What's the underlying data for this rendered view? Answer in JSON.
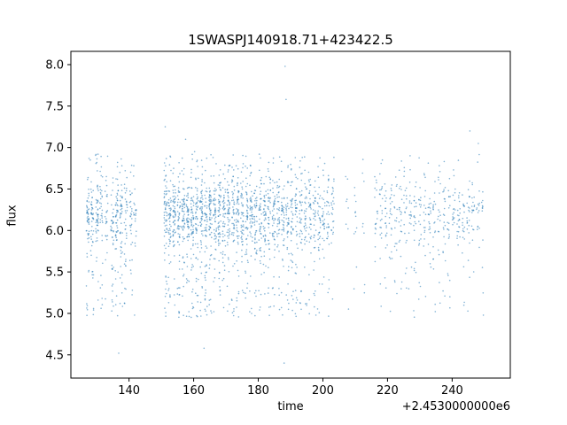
{
  "chart_data": {
    "type": "scatter",
    "title": "1SWASPJ140918.71+423422.5",
    "xlabel": "time",
    "ylabel": "flux",
    "x_offset_label": "+2.4530000000e6",
    "xlim": [
      122,
      258
    ],
    "ylim": [
      4.22,
      8.16
    ],
    "xticks": [
      140,
      160,
      180,
      200,
      220,
      240
    ],
    "yticks": [
      4.5,
      5.0,
      5.5,
      6.0,
      6.5,
      7.0,
      7.5,
      8.0
    ],
    "grid": false,
    "legend": "none",
    "marker": {
      "color": "#1f77b4",
      "radius": 0.8,
      "opacity": 0.55
    },
    "seed": 7,
    "cluster_width": 0.9,
    "dist": {
      "mean": 6.22,
      "sd": 0.21,
      "tail_frac": 0.2,
      "tail_lo": 4.95,
      "tail_hi": 6.02,
      "high_frac": 0.06,
      "high_lo": 6.5,
      "high_hi": 6.92,
      "clip_lo": 4.45,
      "clip_hi": 7.25
    },
    "clusters": [
      [
        127.2,
        55
      ],
      [
        128.6,
        45
      ],
      [
        130.1,
        50
      ],
      [
        131.4,
        35
      ],
      [
        133.0,
        25
      ],
      [
        134.8,
        40
      ],
      [
        136.2,
        50
      ],
      [
        137.6,
        45
      ],
      [
        139.0,
        35
      ],
      [
        140.6,
        30
      ],
      [
        141.8,
        20
      ],
      [
        151.3,
        65
      ],
      [
        152.6,
        55
      ],
      [
        154.0,
        60
      ],
      [
        155.4,
        55
      ],
      [
        156.8,
        60
      ],
      [
        158.2,
        55
      ],
      [
        159.6,
        65
      ],
      [
        161.0,
        55
      ],
      [
        162.4,
        60
      ],
      [
        163.8,
        55
      ],
      [
        165.2,
        60
      ],
      [
        166.6,
        50
      ],
      [
        168.0,
        60
      ],
      [
        169.4,
        50
      ],
      [
        170.8,
        55
      ],
      [
        172.2,
        50
      ],
      [
        173.6,
        55
      ],
      [
        175.0,
        50
      ],
      [
        176.4,
        50
      ],
      [
        177.8,
        50
      ],
      [
        179.2,
        45
      ],
      [
        180.6,
        50
      ],
      [
        182.0,
        45
      ],
      [
        183.4,
        45
      ],
      [
        184.8,
        45
      ],
      [
        186.2,
        40
      ],
      [
        187.6,
        45
      ],
      [
        189.0,
        40
      ],
      [
        190.4,
        40
      ],
      [
        191.8,
        40
      ],
      [
        193.2,
        40
      ],
      [
        194.6,
        35
      ],
      [
        196.0,
        35
      ],
      [
        197.4,
        35
      ],
      [
        198.8,
        35
      ],
      [
        200.2,
        30
      ],
      [
        201.6,
        30
      ],
      [
        203.0,
        25
      ],
      [
        207.5,
        8
      ],
      [
        210.0,
        10
      ],
      [
        212.5,
        8
      ],
      [
        216.5,
        18
      ],
      [
        218.0,
        22
      ],
      [
        219.5,
        20
      ],
      [
        221.0,
        22
      ],
      [
        222.5,
        18
      ],
      [
        224.0,
        22
      ],
      [
        225.5,
        20
      ],
      [
        227.0,
        18
      ],
      [
        228.5,
        22
      ],
      [
        230.0,
        20
      ],
      [
        231.5,
        18
      ],
      [
        233.0,
        22
      ],
      [
        234.5,
        20
      ],
      [
        236.0,
        18
      ],
      [
        237.5,
        22
      ],
      [
        239.0,
        20
      ],
      [
        240.5,
        18
      ],
      [
        242.0,
        22
      ],
      [
        243.5,
        20
      ],
      [
        245.0,
        22
      ],
      [
        246.5,
        18
      ],
      [
        248.0,
        15
      ],
      [
        249.5,
        12
      ]
    ],
    "outliers": [
      [
        151.2,
        7.25
      ],
      [
        157.5,
        7.1
      ],
      [
        160.3,
        6.95
      ],
      [
        166.0,
        6.88
      ],
      [
        188.3,
        7.98
      ],
      [
        188.6,
        7.58
      ],
      [
        188.0,
        4.4
      ],
      [
        163.2,
        4.58
      ],
      [
        136.8,
        4.52
      ],
      [
        130.4,
        6.92
      ],
      [
        128.0,
        6.85
      ],
      [
        218.4,
        6.85
      ],
      [
        245.5,
        7.2
      ],
      [
        248.1,
        7.05
      ],
      [
        203.4,
        6.62
      ],
      [
        210.2,
        6.35
      ]
    ]
  }
}
